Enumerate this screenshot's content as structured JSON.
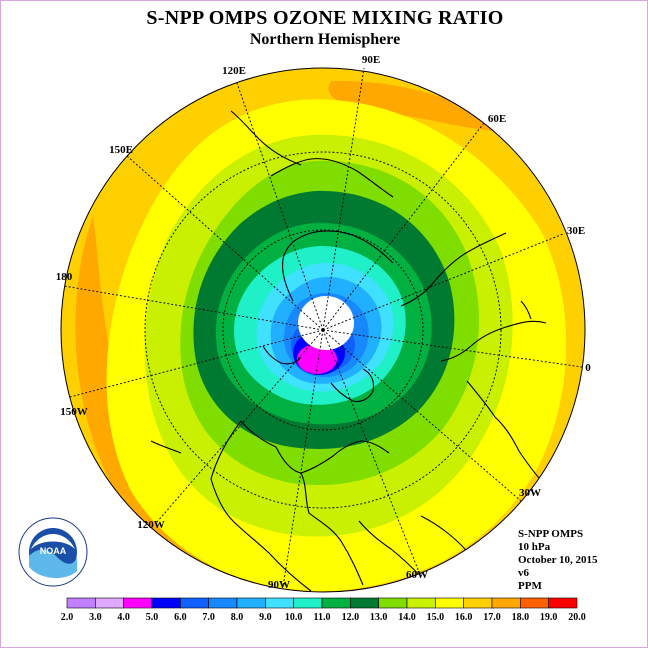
{
  "header": {
    "title": "S-NPP OMPS OZONE MIXING RATIO",
    "subtitle": "Northern Hemisphere"
  },
  "map": {
    "projection": "north-polar-stereographic",
    "longitude_labels": [
      "90E",
      "60E",
      "30E",
      "0",
      "30W",
      "60W",
      "90W",
      "120W",
      "150W",
      "180",
      "150E",
      "120E"
    ]
  },
  "info": {
    "instrument": "S-NPP OMPS",
    "pressure": "10 hPa",
    "date": "October 10, 2015",
    "version": "v6",
    "units": "PPM"
  },
  "logo": {
    "text": "NOAA",
    "ring_text": "NATIONAL OCEANIC AND ATMOSPHERIC ADMINISTRATION · U.S. DEPARTMENT OF COMMERCE"
  },
  "colorbar": {
    "labels": [
      "2.0",
      "3.0",
      "4.0",
      "5.0",
      "6.0",
      "7.0",
      "8.0",
      "9.0",
      "10.0",
      "11.0",
      "12.0",
      "13.0",
      "14.0",
      "15.0",
      "16.0",
      "17.0",
      "18.0",
      "19.0",
      "20.0"
    ],
    "colors": [
      "#c080ff",
      "#e0a8ff",
      "#ff00ff",
      "#0000ff",
      "#1060ff",
      "#1888ff",
      "#20b0ff",
      "#40e0ff",
      "#20f0c8",
      "#00b040",
      "#007a30",
      "#80dd00",
      "#c8f000",
      "#ffff00",
      "#ffd000",
      "#ffa800",
      "#ff6000",
      "#ff0000",
      "#8b5a3c"
    ]
  },
  "contours": {
    "levels_ppm": [
      8.0,
      9.0,
      10.0,
      11.0,
      12.0,
      13.0,
      14.0,
      15.0,
      16.0,
      17.0
    ],
    "low_center_ppm": 4.0,
    "no_data_region": "polar night (white)"
  }
}
